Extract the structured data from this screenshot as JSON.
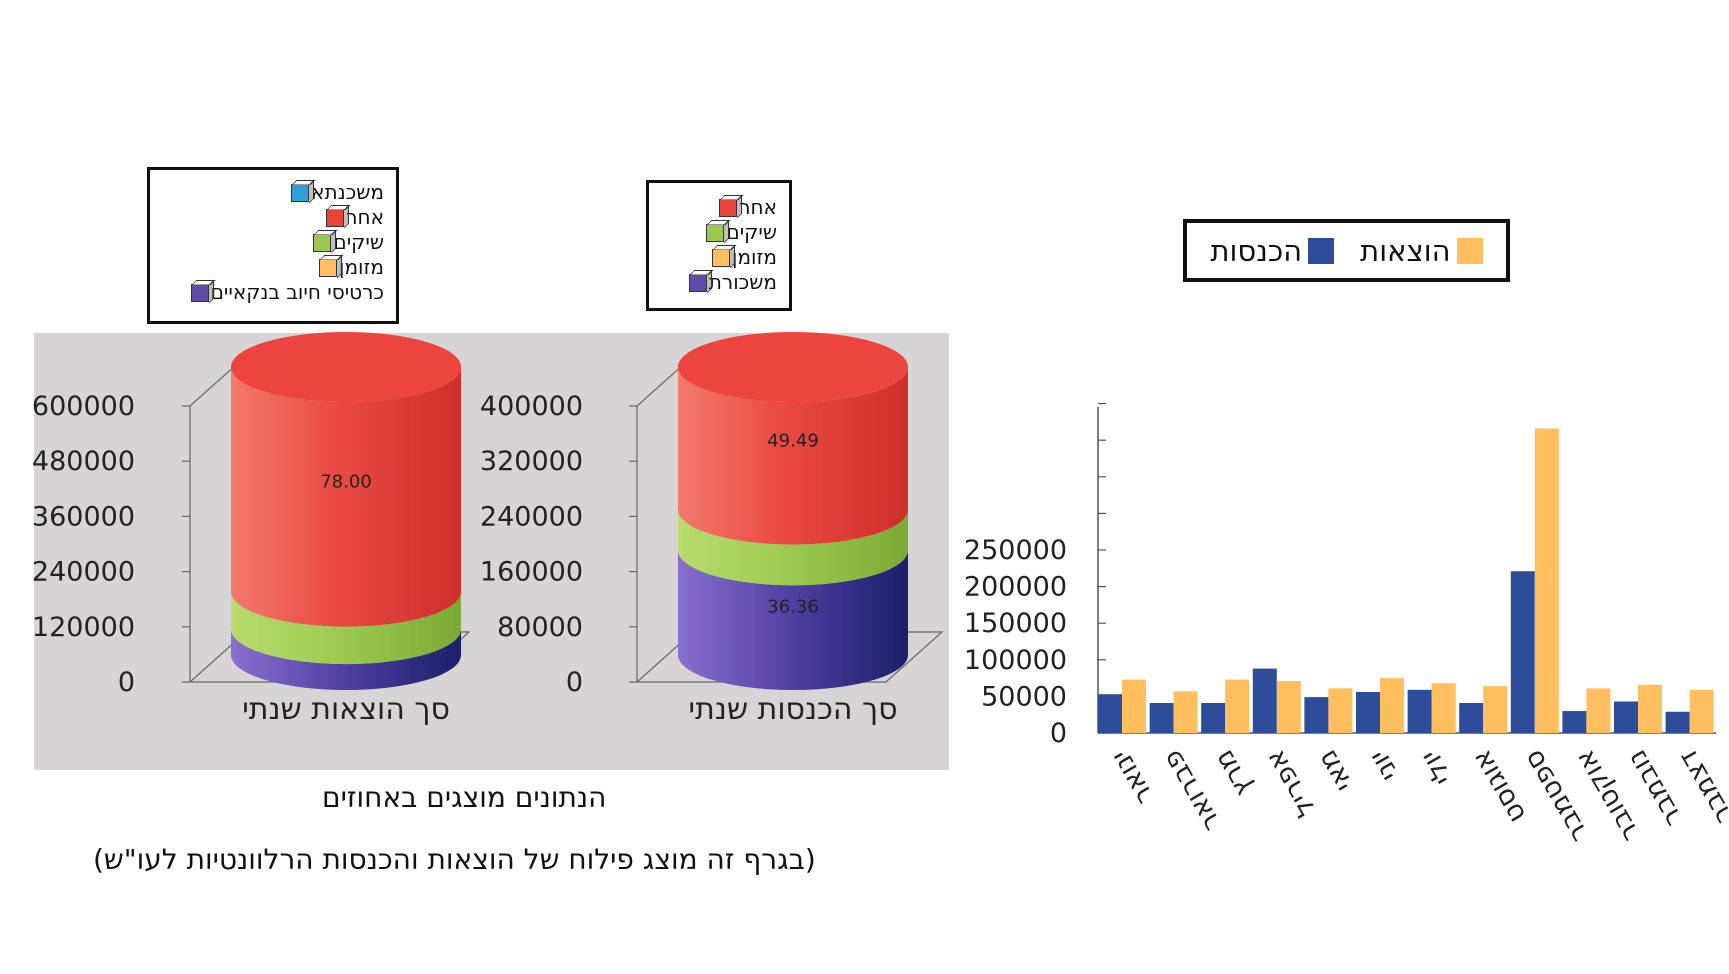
{
  "colors": {
    "panel_bg": "#d6d4d4",
    "red": "#e8423d",
    "green": "#9bc94f",
    "purple": "#5d4da8",
    "blue": "#2d4d9a",
    "orange": "#ffbf5f",
    "cyan": "#2f9fd8"
  },
  "captions": {
    "percent_note": "הנתונים מוצגים באחוזים",
    "description": "(בגרף זה מוצג פילוח של  הוצאות והכנסות הרלוונטיות לעו\"ש)"
  },
  "chart_data": [
    {
      "type": "bar",
      "subtype": "stacked-3d-cylinder",
      "category": "סך הוצאות שנתי",
      "y_ticks": [
        "600000",
        "480000",
        "360000",
        "240000",
        "120000",
        "0"
      ],
      "ylim": [
        0,
        600000
      ],
      "legend_placement": "top",
      "legend": [
        {
          "name": "משכנתא",
          "color": "#2f9fd8"
        },
        {
          "name": "אחר",
          "color": "#e8423d"
        },
        {
          "name": "שיקים",
          "color": "#9bc94f"
        },
        {
          "name": "מזומן",
          "color": "#ffbf5f"
        },
        {
          "name": "כרטיסי חיוב בנקאיים",
          "color": "#5d4da8"
        }
      ],
      "segments": [
        {
          "name": "כרטיסי חיוב בנקאיים",
          "value": 9.0,
          "label": "9.00",
          "color": "#5d4da8"
        },
        {
          "name": "שיקים",
          "value": 13.0,
          "label": "13.00",
          "color": "#9bc94f"
        },
        {
          "name": "אחר",
          "value": 78.0,
          "label": "78.00",
          "color": "#e8423d"
        }
      ]
    },
    {
      "type": "bar",
      "subtype": "stacked-3d-cylinder",
      "category": "סך הכנסות שנתי",
      "y_ticks": [
        "400000",
        "320000",
        "240000",
        "160000",
        "80000",
        "0"
      ],
      "ylim": [
        0,
        400000
      ],
      "legend_placement": "top",
      "legend": [
        {
          "name": "אחר",
          "color": "#e8423d"
        },
        {
          "name": "שיקים",
          "color": "#9bc94f"
        },
        {
          "name": "מזומן",
          "color": "#ffbf5f"
        },
        {
          "name": "משכורת",
          "color": "#5d4da8"
        }
      ],
      "segments": [
        {
          "name": "משכורת",
          "value": 36.36,
          "label": "36.36",
          "color": "#5d4da8"
        },
        {
          "name": "שיקים",
          "value": 14.14,
          "label": "14.14",
          "color": "#9bc94f"
        },
        {
          "name": "אחר",
          "value": 49.49,
          "label": "49.49",
          "color": "#e8423d"
        }
      ]
    },
    {
      "type": "bar",
      "subtype": "grouped",
      "categories": [
        "ינואר",
        "פברואר",
        "מרץ",
        "אפריל",
        "מאי",
        "יוני",
        "יולי",
        "אוגוסט",
        "ספטמבר",
        "אוקטובר",
        "נובמבר",
        "דצמבר"
      ],
      "series": [
        {
          "name": "הכנסות",
          "color": "#2d4d9a",
          "values": [
            53000,
            41000,
            41000,
            88000,
            49000,
            56000,
            59000,
            41000,
            221000,
            30000,
            43000,
            29000
          ]
        },
        {
          "name": "הוצאות",
          "color": "#ffbf5f",
          "values": [
            73000,
            57000,
            73000,
            71000,
            61000,
            75000,
            68000,
            64000,
            416000,
            61000,
            66000,
            59000
          ]
        }
      ],
      "y_ticks": [
        "250000",
        "200000",
        "150000",
        "100000",
        "50000",
        "0"
      ],
      "ylim": [
        0,
        450000
      ],
      "legend_placement": "top"
    }
  ]
}
